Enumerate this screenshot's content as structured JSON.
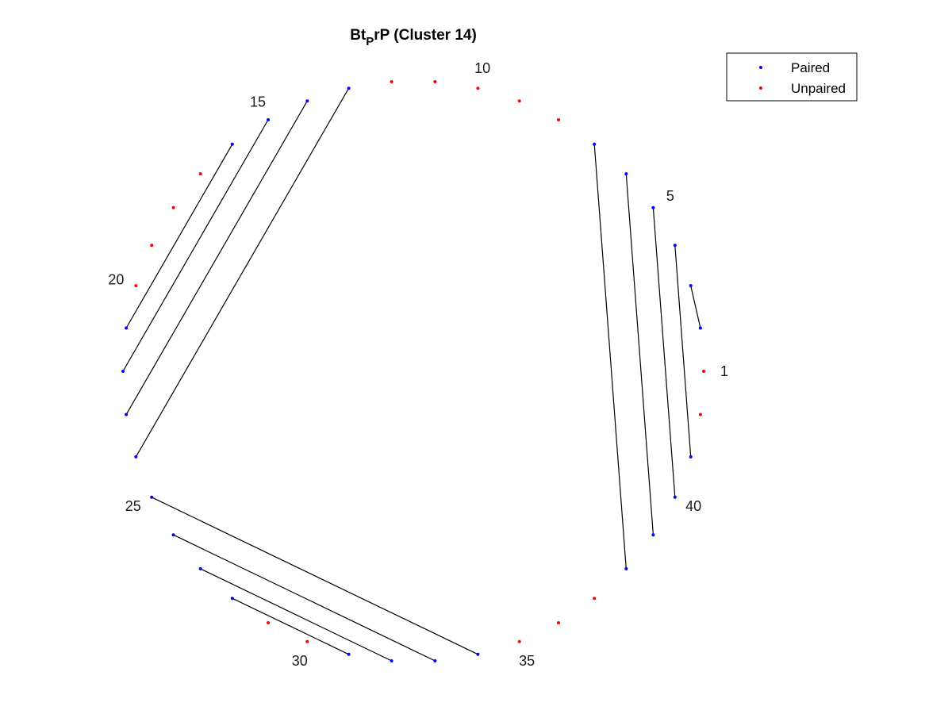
{
  "chart_data": {
    "type": "arc-diagram",
    "title": {
      "prefix": "Bt",
      "subscript": "P",
      "suffix": "rP (Cluster 14)"
    },
    "legend": {
      "placement": "top-right",
      "entries": [
        {
          "label": "Paired",
          "color": "#0000ff"
        },
        {
          "label": "Unpaired",
          "color": "#ff0000"
        }
      ]
    },
    "nucleotide_count": 42,
    "tick_labels": [
      1,
      5,
      10,
      15,
      20,
      25,
      30,
      35,
      40
    ],
    "pairs": [
      [
        2,
        3
      ],
      [
        4,
        41
      ],
      [
        5,
        40
      ],
      [
        6,
        39
      ],
      [
        7,
        38
      ],
      [
        13,
        24
      ],
      [
        14,
        23
      ],
      [
        15,
        22
      ],
      [
        16,
        21
      ],
      [
        25,
        34
      ],
      [
        26,
        33
      ],
      [
        27,
        32
      ],
      [
        28,
        31
      ]
    ],
    "paired_color": "#0000ff",
    "unpaired_color": "#ff0000",
    "pair_line_color": "#000000"
  }
}
